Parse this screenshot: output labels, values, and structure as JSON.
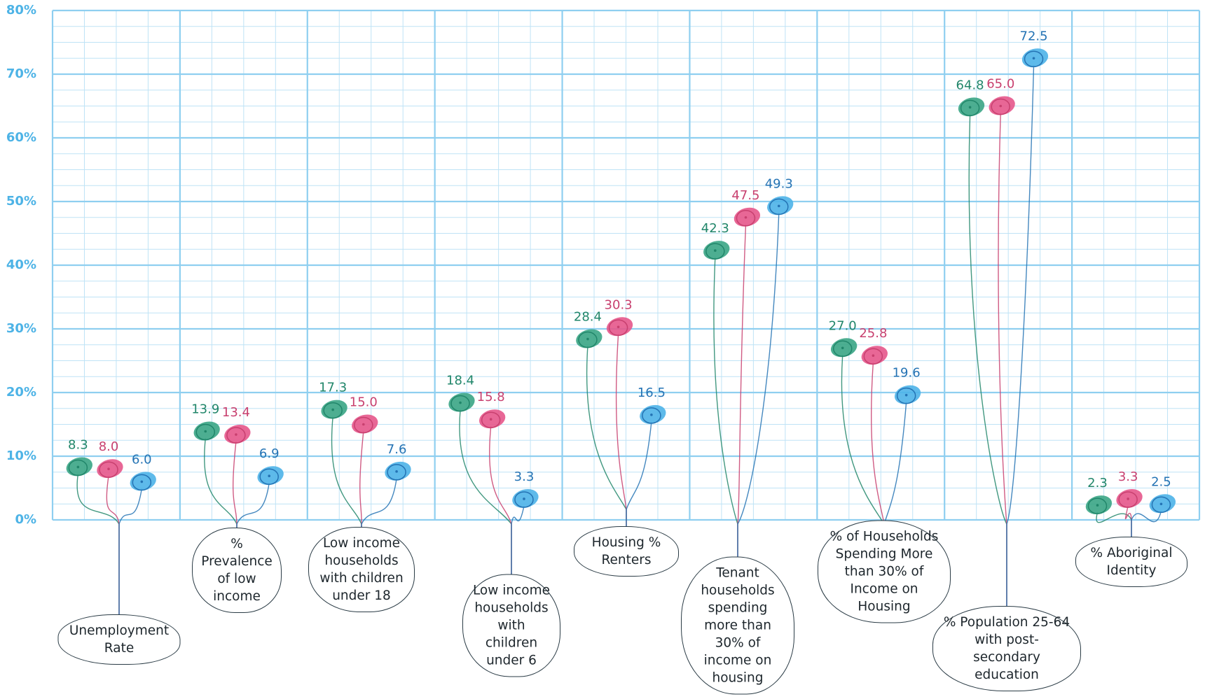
{
  "chart_data": {
    "type": "dot",
    "categories": [
      "Unemployment Rate",
      "% Prevalence of low income",
      "Low income households with children under 18",
      "Low income households with children under 6",
      "Housing % Renters",
      "Tenant households spending more than 30% of income on housing",
      "% of Households Spending More than 30% of Income on Housing",
      "% Population 25-64 with post- secondary education",
      "% Aboriginal Identity"
    ],
    "series": [
      {
        "color": "#3aa585",
        "values": [
          8.3,
          13.9,
          17.3,
          18.4,
          28.4,
          42.3,
          27.0,
          64.8,
          2.3
        ],
        "value_labels": [
          "8.3",
          "13.9",
          "17.3",
          "18.4",
          "28.4",
          "42.3",
          "27.0",
          "64.8",
          "2.3"
        ]
      },
      {
        "color": "#e6578b",
        "values": [
          8.0,
          13.4,
          15.0,
          15.8,
          30.3,
          47.5,
          25.8,
          65.0,
          3.3
        ],
        "value_labels": [
          "8.0",
          "13.4",
          "15.0",
          "15.8",
          "30.3",
          "47.5",
          "25.8",
          "65.0",
          "3.3"
        ]
      },
      {
        "color": "#4cb3e8",
        "values": [
          6.0,
          6.9,
          7.6,
          3.3,
          16.5,
          49.3,
          19.6,
          72.5,
          2.5
        ],
        "value_labels": [
          "6.0",
          "6.9",
          "7.6",
          "3.3",
          "16.5",
          "49.3",
          "19.6",
          "72.5",
          "2.5"
        ]
      }
    ],
    "ylim": [
      0,
      80
    ],
    "yticks": [
      {
        "value": 0,
        "label": "0%"
      },
      {
        "value": 10,
        "label": "10%"
      },
      {
        "value": 20,
        "label": "20%"
      },
      {
        "value": 30,
        "label": "30%"
      },
      {
        "value": 40,
        "label": "40%"
      },
      {
        "value": 50,
        "label": "50%"
      },
      {
        "value": 60,
        "label": "60%"
      },
      {
        "value": 70,
        "label": "70%"
      },
      {
        "value": 80,
        "label": "80%"
      }
    ],
    "grid": true
  }
}
